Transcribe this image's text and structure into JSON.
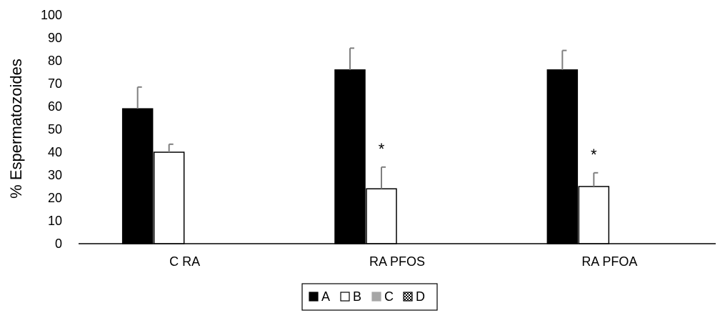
{
  "chart_data": {
    "type": "bar",
    "ylabel": "% Espermatozoides",
    "xlabel": "",
    "ylim": [
      0,
      100
    ],
    "yticks": [
      0,
      10,
      20,
      30,
      40,
      50,
      60,
      70,
      80,
      90,
      100
    ],
    "categories": [
      "C RA",
      "RA PFOS",
      "RA PFOA"
    ],
    "series": [
      {
        "name": "A",
        "values": [
          59,
          76,
          76
        ],
        "errors": [
          9.5,
          9.5,
          8.5
        ],
        "fill": "#000000",
        "stroke": "#000000",
        "pattern": "solid"
      },
      {
        "name": "B",
        "values": [
          40,
          24,
          25
        ],
        "errors": [
          3.5,
          9.5,
          6
        ],
        "fill": "#ffffff",
        "stroke": "#000000",
        "pattern": "solid"
      },
      {
        "name": "C",
        "values": [
          0,
          0,
          0
        ],
        "errors": [
          0,
          0,
          0
        ],
        "fill": "#a6a6a6",
        "stroke": "#a6a6a6",
        "pattern": "solid"
      },
      {
        "name": "D",
        "values": [
          0,
          0,
          0
        ],
        "errors": [
          0,
          0,
          0
        ],
        "fill": "#ffffff",
        "stroke": "#000000",
        "pattern": "checker"
      }
    ],
    "annotations": [
      {
        "category": "RA PFOS",
        "series": "B",
        "text": "*"
      },
      {
        "category": "RA PFOA",
        "series": "B",
        "text": "*"
      }
    ],
    "legend": {
      "position": "bottom",
      "boxed": true
    },
    "grid": false,
    "error_bar_color": "#7f7f7f"
  }
}
